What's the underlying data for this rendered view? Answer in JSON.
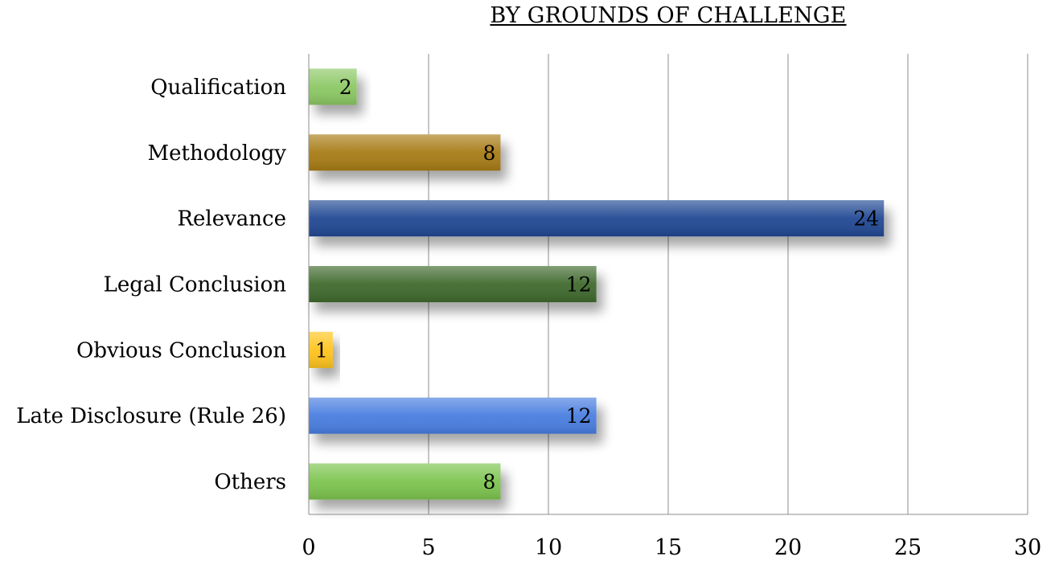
{
  "chart_data": {
    "type": "bar",
    "orientation": "horizontal",
    "title": "BY GROUNDS OF CHALLENGE",
    "categories": [
      "Qualification",
      "Methodology",
      "Relevance",
      "Legal Conclusion",
      "Obvious Conclusion",
      "Late Disclosure (Rule 26)",
      "Others"
    ],
    "values": [
      2,
      8,
      24,
      12,
      1,
      12,
      8
    ],
    "bar_colors": [
      "#8cc865",
      "#a87b16",
      "#234a94",
      "#3f6b2e",
      "#ffc41a",
      "#4a7ee0",
      "#7dc44f"
    ],
    "xlim": [
      0,
      30
    ],
    "xticks": [
      0,
      5,
      10,
      15,
      20,
      25,
      30
    ],
    "grid": "vertical",
    "data_labels": true,
    "legend": "none"
  }
}
